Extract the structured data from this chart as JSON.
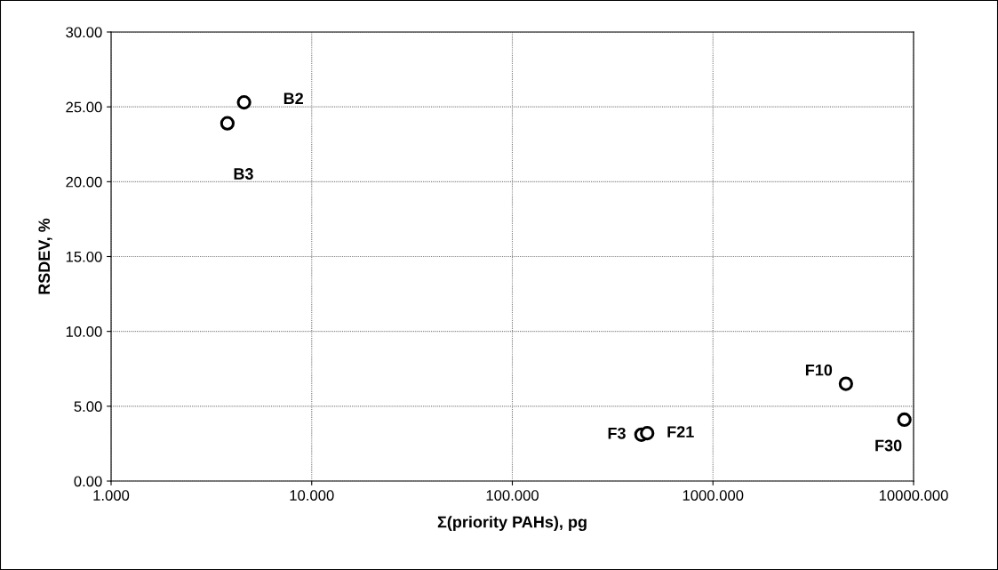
{
  "chart_data": {
    "type": "scatter",
    "xlabel": "Σ(priority PAHs), pg",
    "ylabel": "RSDEV, %",
    "log": "x",
    "grid": true,
    "marker": "circle",
    "xlim": [
      1,
      10000
    ],
    "xticks": [
      {
        "value": 1,
        "label": "1.000"
      },
      {
        "value": 10,
        "label": "10.000"
      },
      {
        "value": 100,
        "label": "100.000"
      },
      {
        "value": 1000,
        "label": "1000.000"
      },
      {
        "value": 10000,
        "label": "10000.000"
      }
    ],
    "ylim": [
      0,
      30
    ],
    "yticks": [
      {
        "value": 0,
        "label": "0.00"
      },
      {
        "value": 5,
        "label": "5.00"
      },
      {
        "value": 10,
        "label": "10.00"
      },
      {
        "value": 15,
        "label": "15.00"
      },
      {
        "value": 20,
        "label": "20.00"
      },
      {
        "value": 25,
        "label": "25.00"
      },
      {
        "value": 30,
        "label": "30.00"
      }
    ],
    "series": [
      {
        "color": "#ffffff",
        "x": [
          4.6,
          3.8,
          440,
          470,
          4600,
          9000
        ],
        "values": [
          25.3,
          23.9,
          3.1,
          3.2,
          6.5,
          4.1
        ]
      }
    ],
    "annotations": [
      {
        "text": "B2",
        "x": 4.6,
        "y": 25.3
      },
      {
        "text": "B3",
        "x": 3.8,
        "y": 23.9
      },
      {
        "text": "F3",
        "x": 440,
        "y": 3.1
      },
      {
        "text": "F21",
        "x": 470,
        "y": 3.2
      },
      {
        "text": "F10",
        "x": 4600,
        "y": 6.5
      },
      {
        "text": "F30",
        "x": 9000,
        "y": 4.1
      }
    ]
  }
}
